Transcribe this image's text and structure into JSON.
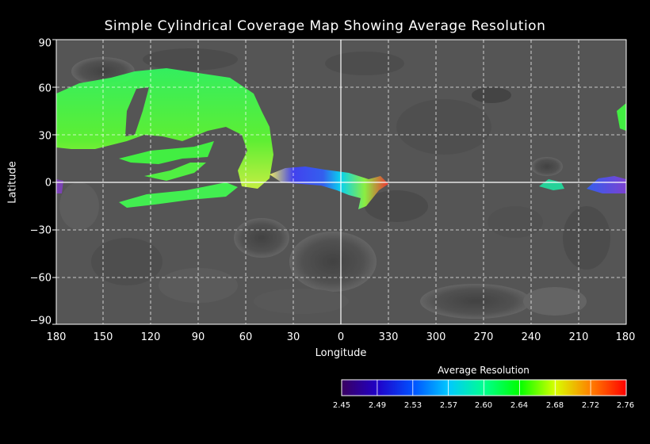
{
  "title": "Simple Cylindrical Coverage Map Showing Average Resolution",
  "xlabel": "Longitude",
  "ylabel": "Latitude",
  "x_ticks": [
    "180",
    "150",
    "120",
    "90",
    "60",
    "30",
    "0",
    "330",
    "300",
    "270",
    "240",
    "210",
    "180"
  ],
  "y_ticks": [
    "90",
    "60",
    "30",
    "0",
    "−30",
    "−60",
    "−90"
  ],
  "colorbar": {
    "title": "Average Resolution",
    "ticks": [
      "2.45",
      "2.49",
      "2.53",
      "2.57",
      "2.60",
      "2.64",
      "2.68",
      "2.72",
      "2.76"
    ],
    "colors": [
      "#4b0082",
      "#0000ff",
      "#00bfff",
      "#00ff80",
      "#00ff00",
      "#c8ff00",
      "#ffa500",
      "#ff0000"
    ]
  },
  "colors": {
    "background": "#000000",
    "map_surface": "#555555",
    "grid": "#ffffff"
  }
}
